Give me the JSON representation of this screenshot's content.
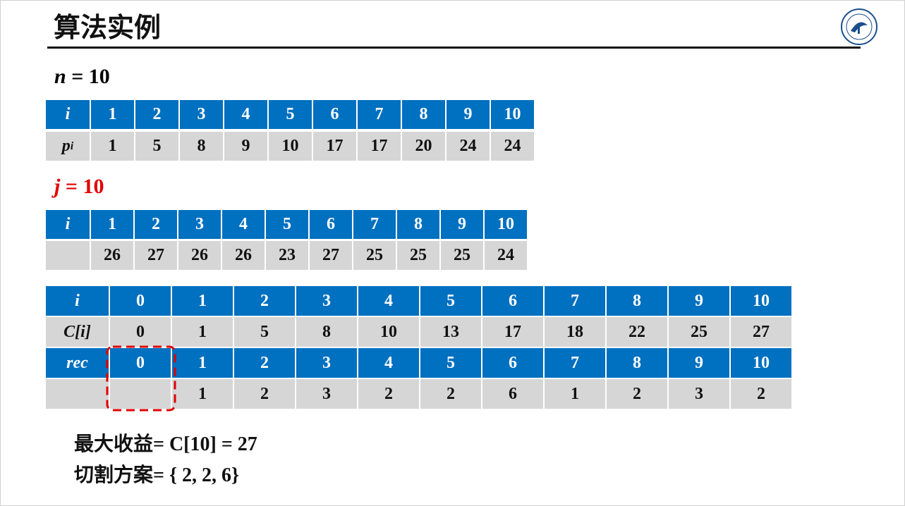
{
  "title": "算法实例",
  "n_label": {
    "var": "n",
    "eq": "= 10"
  },
  "j_label": {
    "var": "j",
    "eq": "= 10"
  },
  "tables": [
    {
      "rows": [
        {
          "label": "i",
          "cells": [
            1,
            2,
            3,
            4,
            5,
            6,
            7,
            8,
            9,
            10
          ]
        },
        {
          "label": {
            "base": "p",
            "sub": "i"
          },
          "cells": [
            1,
            5,
            8,
            9,
            10,
            17,
            17,
            20,
            24,
            24
          ]
        }
      ]
    },
    {
      "rows": [
        {
          "label": "i",
          "cells": [
            1,
            2,
            3,
            4,
            5,
            6,
            7,
            8,
            9,
            10
          ]
        },
        {
          "cells": [
            26,
            27,
            26,
            26,
            23,
            27,
            25,
            25,
            25,
            24
          ]
        }
      ]
    },
    {
      "rows": [
        {
          "label": "i",
          "cells": [
            0,
            1,
            2,
            3,
            4,
            5,
            6,
            7,
            8,
            9,
            10
          ]
        },
        {
          "label": "C[i]",
          "cells": [
            0,
            1,
            5,
            8,
            10,
            13,
            17,
            18,
            22,
            25,
            27
          ]
        },
        {
          "label": "rec",
          "cells": [
            0,
            1,
            2,
            3,
            4,
            5,
            6,
            7,
            8,
            9,
            10
          ]
        },
        {
          "cells": [
            null,
            1,
            2,
            3,
            2,
            2,
            6,
            1,
            2,
            3,
            2
          ]
        }
      ]
    }
  ],
  "summary": [
    "最大收益= C[10]  =  27",
    "切割方案= { 2, 2, 6}"
  ]
}
